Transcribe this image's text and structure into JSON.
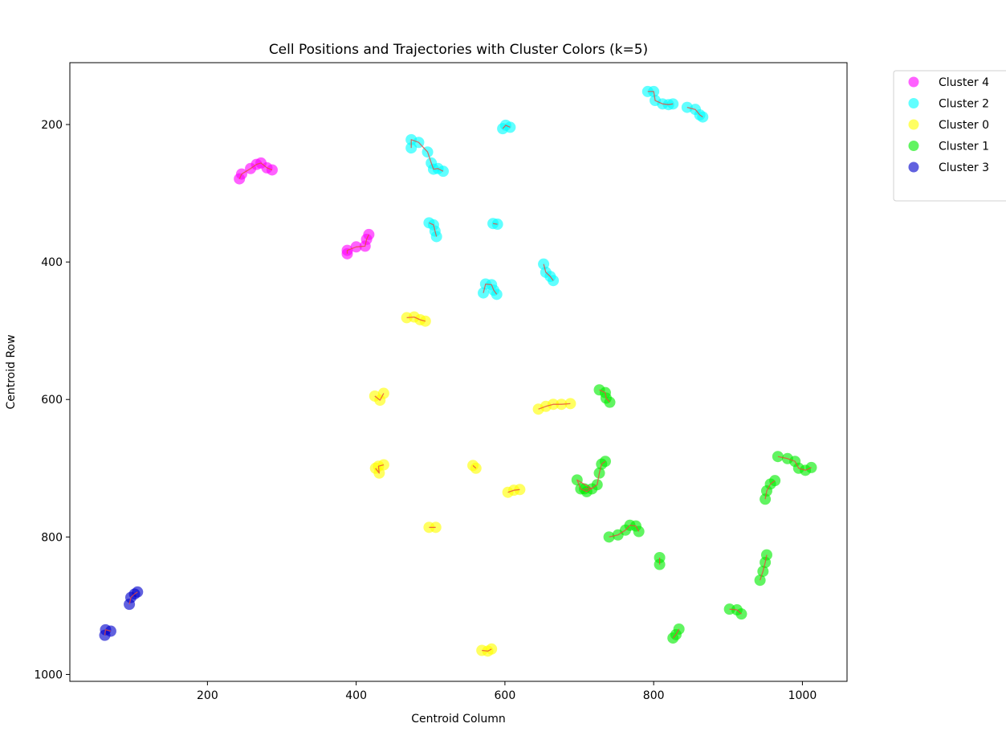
{
  "chart_data": {
    "type": "scatter",
    "title": "Cell Positions and Trajectories with Cluster Colors (k=5)",
    "xlabel": "Centroid Column",
    "ylabel": "Centroid Row",
    "xlim": [
      15,
      1060
    ],
    "ylim": [
      1010,
      110
    ],
    "y_inverted": true,
    "x_ticks": [
      200,
      400,
      600,
      800,
      1000
    ],
    "y_ticks": [
      200,
      400,
      600,
      800,
      1000
    ],
    "grid": false,
    "legend_position": "outside-top-right",
    "trajectory_color": "#e8483c",
    "series": [
      {
        "name": "Cluster 4",
        "color": "#ff00ff",
        "tracks": [
          [
            [
              243,
              279
            ],
            [
              246,
              272
            ],
            [
              258,
              264
            ],
            [
              266,
              258
            ],
            [
              272,
              256
            ],
            [
              280,
              263
            ],
            [
              287,
              266
            ]
          ],
          [
            [
              388,
              388
            ],
            [
              388,
              383
            ],
            [
              400,
              378
            ],
            [
              412,
              377
            ],
            [
              414,
              367
            ],
            [
              417,
              360
            ]
          ]
        ]
      },
      {
        "name": "Cluster 2",
        "color": "#00ffff",
        "tracks": [
          [
            [
              792,
              152
            ],
            [
              800,
              152
            ],
            [
              802,
              165
            ],
            [
              812,
              170
            ],
            [
              820,
              171
            ],
            [
              826,
              170
            ]
          ],
          [
            [
              845,
              175
            ],
            [
              856,
              178
            ],
            [
              862,
              186
            ],
            [
              866,
              189
            ]
          ],
          [
            [
              597,
              206
            ],
            [
              601,
              201
            ],
            [
              607,
              204
            ]
          ],
          [
            [
              474,
              234
            ],
            [
              474,
              222
            ],
            [
              484,
              226
            ],
            [
              496,
              240
            ],
            [
              501,
              256
            ],
            [
              504,
              265
            ],
            [
              510,
              264
            ],
            [
              517,
              268
            ]
          ],
          [
            [
              584,
              344
            ],
            [
              590,
              345
            ]
          ],
          [
            [
              498,
              343
            ],
            [
              504,
              346
            ],
            [
              506,
              355
            ],
            [
              508,
              363
            ]
          ],
          [
            [
              652,
              403
            ],
            [
              655,
              415
            ],
            [
              661,
              421
            ],
            [
              665,
              427
            ]
          ],
          [
            [
              571,
              445
            ],
            [
              574,
              432
            ],
            [
              582,
              433
            ],
            [
              585,
              441
            ],
            [
              589,
              447
            ]
          ]
        ]
      },
      {
        "name": "Cluster 0",
        "color": "#ffff00",
        "tracks": [
          [
            [
              468,
              481
            ],
            [
              478,
              480
            ],
            [
              486,
              484
            ],
            [
              493,
              486
            ]
          ],
          [
            [
              425,
              595
            ],
            [
              432,
              601
            ],
            [
              437,
              591
            ]
          ],
          [
            [
              645,
              614
            ],
            [
              655,
              610
            ],
            [
              665,
              607
            ],
            [
              676,
              607
            ],
            [
              688,
              606
            ]
          ],
          [
            [
              426,
              700
            ],
            [
              431,
              707
            ],
            [
              430,
              697
            ],
            [
              437,
              695
            ]
          ],
          [
            [
              557,
              696
            ],
            [
              561,
              700
            ]
          ],
          [
            [
              604,
              735
            ],
            [
              612,
              732
            ],
            [
              620,
              731
            ]
          ],
          [
            [
              498,
              786
            ],
            [
              507,
              786
            ]
          ],
          [
            [
              569,
              965
            ],
            [
              577,
              966
            ],
            [
              582,
              963
            ]
          ]
        ]
      },
      {
        "name": "Cluster 1",
        "color": "#00ee00",
        "tracks": [
          [
            [
              727,
              586
            ],
            [
              735,
              590
            ],
            [
              736,
              598
            ],
            [
              741,
              604
            ]
          ],
          [
            [
              707,
              730
            ],
            [
              717,
              730
            ],
            [
              697,
              717
            ],
            [
              702,
              730
            ],
            [
              710,
              734
            ],
            [
              724,
              724
            ],
            [
              727,
              707
            ],
            [
              730,
              694
            ],
            [
              735,
              690
            ]
          ],
          [
            [
              967,
              683
            ],
            [
              980,
              686
            ],
            [
              990,
              690
            ],
            [
              995,
              700
            ],
            [
              1004,
              703
            ],
            [
              1012,
              699
            ]
          ],
          [
            [
              950,
              745
            ],
            [
              952,
              733
            ],
            [
              957,
              723
            ],
            [
              963,
              718
            ]
          ],
          [
            [
              740,
              800
            ],
            [
              752,
              797
            ],
            [
              762,
              790
            ],
            [
              768,
              783
            ],
            [
              776,
              784
            ],
            [
              780,
              792
            ]
          ],
          [
            [
              808,
              830
            ],
            [
              808,
              840
            ]
          ],
          [
            [
              943,
              863
            ],
            [
              947,
              850
            ],
            [
              950,
              837
            ],
            [
              952,
              826
            ]
          ],
          [
            [
              902,
              905
            ],
            [
              912,
              906
            ],
            [
              918,
              912
            ]
          ],
          [
            [
              826,
              947
            ],
            [
              830,
              942
            ],
            [
              834,
              934
            ]
          ]
        ]
      },
      {
        "name": "Cluster 3",
        "color": "#0000cc",
        "tracks": [
          [
            [
              62,
              943
            ],
            [
              63,
              935
            ],
            [
              70,
              937
            ]
          ],
          [
            [
              95,
              898
            ],
            [
              97,
              888
            ],
            [
              102,
              883
            ],
            [
              106,
              880
            ]
          ]
        ]
      }
    ]
  }
}
